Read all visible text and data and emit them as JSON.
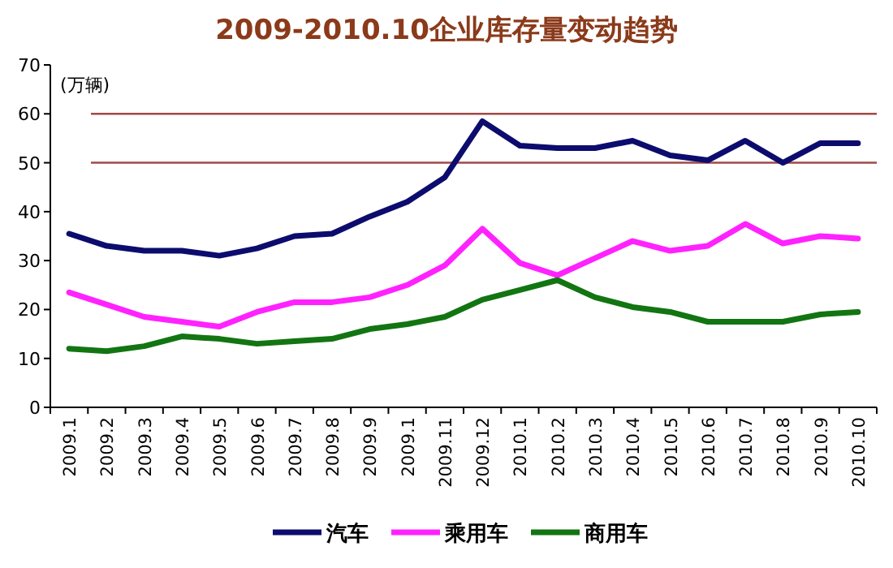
{
  "chart_data": {
    "type": "line",
    "title": "2009-2010.10企业库存量变动趋势",
    "ylabel": "(万辆)",
    "categories": [
      "2009.1",
      "2009.2",
      "2009.3",
      "2009.4",
      "2009.5",
      "2009.6",
      "2009.7",
      "2009.8",
      "2009.9",
      "2009.1",
      "2009.11",
      "2009.12",
      "2010.1",
      "2010.2",
      "2010.3",
      "2010.4",
      "2010.5",
      "2010.6",
      "2010.7",
      "2010.8",
      "2010.9",
      "2010.10"
    ],
    "series": [
      {
        "name": "汽车",
        "color": "#0c0c6e",
        "values": [
          35.5,
          33,
          32,
          32,
          31,
          32.5,
          35,
          35.5,
          39,
          42,
          47,
          58.5,
          53.5,
          53,
          53,
          54.5,
          51.5,
          50.5,
          54.5,
          50,
          54,
          54
        ]
      },
      {
        "name": "乘用车",
        "color": "#ff22ff",
        "values": [
          23.5,
          21,
          18.5,
          17.5,
          16.5,
          19.5,
          21.5,
          21.5,
          22.5,
          25,
          29,
          36.5,
          29.5,
          27,
          30.5,
          34,
          32,
          33,
          37.5,
          33.5,
          35,
          34.5
        ]
      },
      {
        "name": "商用车",
        "color": "#127512",
        "values": [
          12,
          11.5,
          12.5,
          14.5,
          14,
          13,
          13.5,
          14,
          16,
          17,
          18.5,
          22,
          24,
          26,
          22.5,
          20.5,
          19.5,
          17.5,
          17.5,
          17.5,
          19,
          19.5
        ]
      }
    ],
    "ref_lines": [
      {
        "axis": "y",
        "value": 60,
        "color": "#a04848"
      },
      {
        "axis": "y",
        "value": 50,
        "color": "#a04848"
      }
    ],
    "ylim": [
      0,
      70
    ],
    "yticks": [
      0,
      10,
      20,
      30,
      40,
      50,
      60,
      70
    ],
    "grid": false,
    "legend": "bottom"
  }
}
